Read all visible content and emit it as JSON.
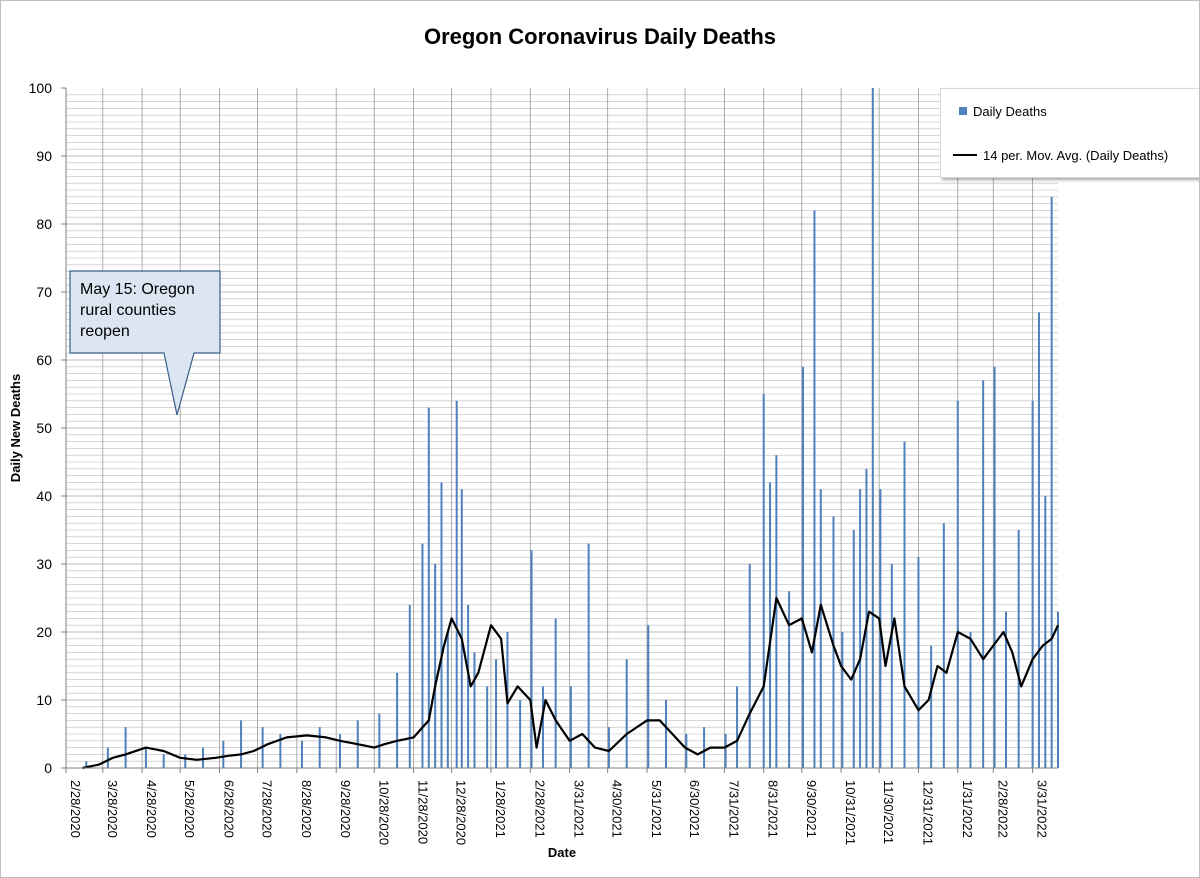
{
  "chart_data": {
    "type": "bar",
    "title": "Oregon Coronavirus Daily Deaths",
    "xlabel": "Date",
    "ylabel": "Daily New Deaths",
    "ylim": [
      0,
      100
    ],
    "y_ticks": [
      0,
      10,
      20,
      30,
      40,
      50,
      60,
      70,
      80,
      90,
      100
    ],
    "x_tick_labels": [
      "2/28/2020",
      "3/28/2020",
      "4/28/2020",
      "5/28/2020",
      "6/28/2020",
      "7/28/2020",
      "8/28/2020",
      "9/28/2020",
      "10/28/2020",
      "11/28/2020",
      "12/28/2020",
      "1/28/2021",
      "2/28/2021",
      "3/31/2021",
      "4/30/2021",
      "5/31/2021",
      "6/30/2021",
      "7/31/2021",
      "8/31/2021",
      "9/30/2021",
      "10/31/2021",
      "11/30/2021",
      "12/31/2021",
      "1/31/2022",
      "2/28/2022",
      "3/31/2022"
    ],
    "x_range": [
      "2/28/2020",
      "4/20/2022"
    ],
    "grid": true,
    "legend_placement": "top-right",
    "legend": [
      "Daily Deaths",
      "14 per. Mov. Avg. (Daily Deaths)"
    ],
    "series": [
      {
        "name": "Daily Deaths",
        "kind": "bar",
        "color": "#4f81bd",
        "x": [
          "2020-03-15",
          "2020-04-01",
          "2020-04-15",
          "2020-05-01",
          "2020-05-15",
          "2020-06-01",
          "2020-06-15",
          "2020-07-01",
          "2020-07-15",
          "2020-08-01",
          "2020-08-15",
          "2020-09-01",
          "2020-09-15",
          "2020-10-01",
          "2020-10-15",
          "2020-11-01",
          "2020-11-15",
          "2020-11-25",
          "2020-12-05",
          "2020-12-10",
          "2020-12-15",
          "2020-12-20",
          "2020-12-25",
          "2021-01-01",
          "2021-01-05",
          "2021-01-10",
          "2021-01-15",
          "2021-01-25",
          "2021-02-01",
          "2021-02-10",
          "2021-02-20",
          "2021-03-01",
          "2021-03-10",
          "2021-03-20",
          "2021-04-01",
          "2021-04-15",
          "2021-05-01",
          "2021-05-15",
          "2021-06-01",
          "2021-06-15",
          "2021-07-01",
          "2021-07-15",
          "2021-08-01",
          "2021-08-10",
          "2021-08-20",
          "2021-08-31",
          "2021-09-05",
          "2021-09-10",
          "2021-09-20",
          "2021-10-01",
          "2021-10-10",
          "2021-10-15",
          "2021-10-25",
          "2021-11-01",
          "2021-11-10",
          "2021-11-15",
          "2021-11-20",
          "2021-11-25",
          "2021-12-01",
          "2021-12-10",
          "2021-12-20",
          "2021-12-31",
          "2022-01-10",
          "2022-01-20",
          "2022-01-31",
          "2022-02-10",
          "2022-02-20",
          "2022-03-01",
          "2022-03-10",
          "2022-03-20",
          "2022-03-31",
          "2022-04-05",
          "2022-04-10",
          "2022-04-15",
          "2022-04-20"
        ],
        "values": [
          1,
          3,
          6,
          3,
          2,
          2,
          3,
          4,
          7,
          6,
          5,
          4,
          6,
          5,
          7,
          8,
          14,
          24,
          33,
          53,
          30,
          42,
          20,
          54,
          41,
          24,
          17,
          12,
          16,
          20,
          10,
          32,
          12,
          22,
          12,
          33,
          6,
          16,
          21,
          10,
          5,
          6,
          5,
          12,
          30,
          55,
          42,
          46,
          26,
          59,
          82,
          41,
          37,
          20,
          35,
          41,
          44,
          100,
          41,
          30,
          48,
          31,
          18,
          36,
          54,
          20,
          57,
          59,
          23,
          35,
          54,
          67,
          40,
          84,
          23
        ]
      },
      {
        "name": "14 per. Mov. Avg. (Daily Deaths)",
        "kind": "line",
        "color": "#000000",
        "x": [
          "2020-03-12",
          "2020-03-25",
          "2020-04-05",
          "2020-04-15",
          "2020-05-01",
          "2020-05-15",
          "2020-05-28",
          "2020-06-10",
          "2020-06-25",
          "2020-07-05",
          "2020-07-15",
          "2020-07-25",
          "2020-08-05",
          "2020-08-20",
          "2020-09-05",
          "2020-09-20",
          "2020-10-01",
          "2020-10-15",
          "2020-10-28",
          "2020-11-05",
          "2020-11-15",
          "2020-11-28",
          "2020-12-10",
          "2020-12-15",
          "2020-12-22",
          "2020-12-28",
          "2021-01-05",
          "2021-01-12",
          "2021-01-18",
          "2021-01-28",
          "2021-02-05",
          "2021-02-10",
          "2021-02-18",
          "2021-02-28",
          "2021-03-05",
          "2021-03-12",
          "2021-03-20",
          "2021-03-31",
          "2021-04-10",
          "2021-04-20",
          "2021-05-01",
          "2021-05-15",
          "2021-05-31",
          "2021-06-10",
          "2021-06-20",
          "2021-06-30",
          "2021-07-10",
          "2021-07-20",
          "2021-07-31",
          "2021-08-10",
          "2021-08-20",
          "2021-08-31",
          "2021-09-10",
          "2021-09-20",
          "2021-09-30",
          "2021-10-08",
          "2021-10-15",
          "2021-10-25",
          "2021-10-31",
          "2021-11-08",
          "2021-11-15",
          "2021-11-22",
          "2021-11-30",
          "2021-12-05",
          "2021-12-12",
          "2021-12-20",
          "2021-12-31",
          "2022-01-08",
          "2022-01-15",
          "2022-01-22",
          "2022-01-31",
          "2022-02-10",
          "2022-02-20",
          "2022-02-28",
          "2022-03-08",
          "2022-03-15",
          "2022-03-22",
          "2022-03-31",
          "2022-04-08",
          "2022-04-15",
          "2022-04-20"
        ],
        "values": [
          0,
          0.5,
          1.5,
          2,
          3,
          2.5,
          1.5,
          1.2,
          1.5,
          1.8,
          2,
          2.5,
          3.5,
          4.5,
          4.8,
          4.5,
          4,
          3.5,
          3,
          3.5,
          4,
          4.5,
          7,
          12,
          18,
          22,
          19,
          12,
          14,
          21,
          19,
          9.5,
          12,
          10,
          3,
          10,
          7,
          4,
          5,
          3,
          2.5,
          5,
          7,
          7,
          5,
          3,
          2,
          3,
          3,
          4,
          8,
          12,
          25,
          21,
          22,
          17,
          24,
          18,
          15,
          13,
          16,
          23,
          22,
          15,
          22,
          12,
          8.5,
          10,
          15,
          14,
          20,
          19,
          16,
          18,
          20,
          17,
          12,
          16,
          18,
          19,
          21
        ]
      }
    ],
    "annotations": [
      {
        "text": "May 15: Oregon rural counties reopen",
        "points_to": "2020-05-15"
      }
    ]
  },
  "annotation": {
    "line1": "May 15: Oregon",
    "line2": "rural counties",
    "line3": "reopen"
  },
  "legend": {
    "bar_label": "Daily Deaths",
    "line_label": "14 per. Mov. Avg. (Daily Deaths)"
  }
}
